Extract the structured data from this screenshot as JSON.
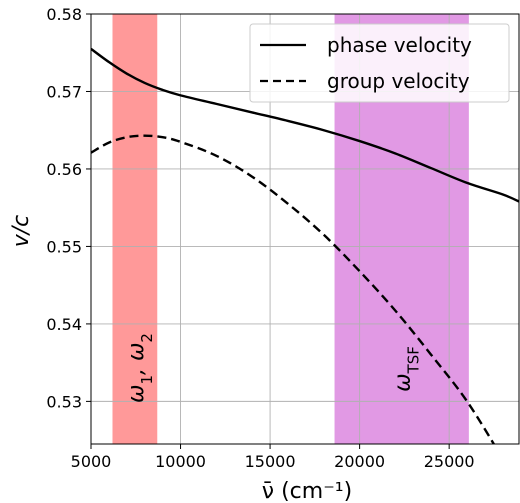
{
  "chart_data": {
    "type": "line",
    "title": "",
    "xlabel": "ν̄ (cm⁻¹)",
    "ylabel": "v/c",
    "xlim": [
      5000,
      28900
    ],
    "ylim": [
      0.5245,
      0.58
    ],
    "xticks": [
      5000,
      10000,
      15000,
      20000,
      25000
    ],
    "xtick_labels": [
      "5000",
      "10000",
      "15000",
      "20000",
      "25000"
    ],
    "yticks": [
      0.53,
      0.54,
      0.55,
      0.56,
      0.57,
      0.58
    ],
    "ytick_labels": [
      "0.53",
      "0.54",
      "0.55",
      "0.56",
      "0.57",
      "0.58"
    ],
    "grid": true,
    "legend_position": "top-right",
    "series": [
      {
        "name": "phase velocity",
        "style": "solid",
        "color": "#000000",
        "x": [
          5000,
          6000,
          7000,
          8000,
          9000,
          10000,
          12000,
          14000,
          16000,
          18000,
          20000,
          22000,
          24000,
          26000,
          28000,
          28900
        ],
        "y": [
          0.5755,
          0.5738,
          0.5723,
          0.5711,
          0.5702,
          0.5695,
          0.5684,
          0.5673,
          0.5662,
          0.565,
          0.5636,
          0.562,
          0.5601,
          0.5582,
          0.5567,
          0.5558
        ]
      },
      {
        "name": "group velocity",
        "style": "dashed",
        "color": "#000000",
        "x": [
          5000,
          6000,
          7000,
          8000,
          9000,
          10000,
          12000,
          14000,
          16000,
          18000,
          20000,
          22000,
          24000,
          26000,
          28000,
          28900
        ],
        "y": [
          0.5621,
          0.5634,
          0.5641,
          0.5643,
          0.5641,
          0.5635,
          0.5617,
          0.559,
          0.5555,
          0.5515,
          0.5468,
          0.5417,
          0.536,
          0.53,
          0.5225,
          0.5185
        ]
      }
    ],
    "bands": [
      {
        "label_main": "ω",
        "label_sub": "1",
        "label_sep": ",",
        "label_main2": "ω",
        "label_sub2": "2",
        "x_start": 6200,
        "x_end": 8700,
        "color": "#ff9999"
      },
      {
        "label_main": "ω",
        "label_sub": "TSF",
        "x_start": 18600,
        "x_end": 26100,
        "color": "#e199e4"
      }
    ]
  }
}
